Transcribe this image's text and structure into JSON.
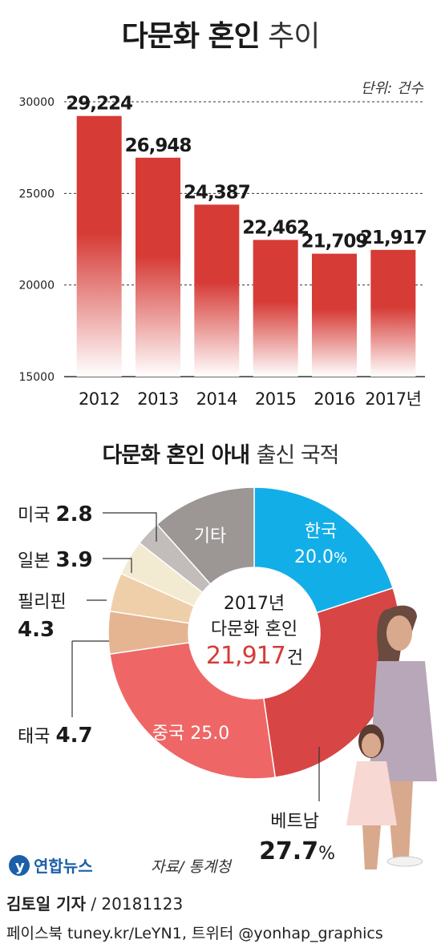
{
  "title_bold": "다문화 혼인",
  "title_light": "추이",
  "unit_label": "단위: 건수",
  "chart_data": [
    {
      "type": "bar",
      "title": "다문화 혼인 추이",
      "unit": "단위: 건수",
      "categories": [
        "2012",
        "2013",
        "2014",
        "2015",
        "2016",
        "2017년"
      ],
      "values": [
        29224,
        26948,
        24387,
        22462,
        21709,
        21917
      ],
      "value_labels": [
        "29,224",
        "26,948",
        "24,387",
        "22,462",
        "21,709",
        "21,917"
      ],
      "ylim": [
        15000,
        30000
      ],
      "yticks": [
        30000,
        25000,
        20000,
        15000
      ],
      "color_top": "#d63b36",
      "color_bottom": "#ffffff"
    },
    {
      "type": "pie",
      "title_bold": "다문화 혼인 아내",
      "title_light": "출신 국적",
      "center_lines": [
        "2017년",
        "다문화 혼인"
      ],
      "center_value": "21,917",
      "center_unit": "건",
      "slices": [
        {
          "label": "한국",
          "value": 20.0,
          "value_text": "20.0",
          "suffix": "%",
          "color": "#12aee8"
        },
        {
          "label": "베트남",
          "value": 27.7,
          "value_text": "27.7",
          "suffix": "%",
          "color": "#d84545"
        },
        {
          "label": "중국",
          "value": 25.0,
          "value_text": "25.0",
          "suffix": "",
          "color": "#ee6766"
        },
        {
          "label": "태국",
          "value": 4.7,
          "value_text": "4.7",
          "suffix": "",
          "color": "#e5b592"
        },
        {
          "label": "필리핀",
          "value": 4.3,
          "value_text": "4.3",
          "suffix": "",
          "color": "#efcfa9"
        },
        {
          "label": "일본",
          "value": 3.9,
          "value_text": "3.9",
          "suffix": "",
          "color": "#f3ead2"
        },
        {
          "label": "미국",
          "value": 2.8,
          "value_text": "2.8",
          "suffix": "",
          "color": "#c2bcbb"
        },
        {
          "label": "기타",
          "value": 11.6,
          "value_text": "",
          "suffix": "",
          "color": "#9c9695"
        }
      ]
    }
  ],
  "source": "자료/ 통계청",
  "logo_text": "연합뉴스",
  "reporter": "김토일 기자",
  "date": "/ 20181123",
  "contact": "페이스북 tuney.kr/LeYN1, 트위터 @yonhap_graphics"
}
